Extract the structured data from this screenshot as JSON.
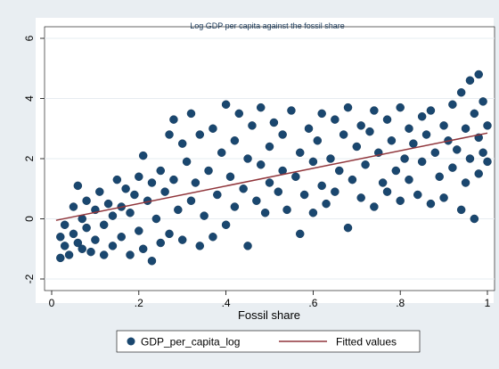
{
  "chart_data": {
    "type": "scatter",
    "title": "Log GDP per capita against the fossil share",
    "xlabel": "Fossil share",
    "ylabel": "",
    "xlim": [
      0,
      1
    ],
    "ylim": [
      -2,
      6
    ],
    "x_ticks": [
      0,
      0.2,
      0.4,
      0.6,
      0.8,
      1
    ],
    "x_tick_labels": [
      "0",
      ".2",
      ".4",
      ".6",
      ".8",
      "1"
    ],
    "y_ticks": [
      -2,
      0,
      2,
      4,
      6
    ],
    "y_tick_labels": [
      "-2",
      "0",
      "2",
      "4",
      "6"
    ],
    "grid": "horizontal",
    "legend_position": "bottom",
    "series": [
      {
        "name": "GDP_per_capita_log",
        "kind": "scatter",
        "color": "#1a476f",
        "points": [
          [
            0.02,
            -0.6
          ],
          [
            0.02,
            -1.3
          ],
          [
            0.03,
            -0.9
          ],
          [
            0.03,
            -0.2
          ],
          [
            0.04,
            -1.2
          ],
          [
            0.05,
            -0.5
          ],
          [
            0.05,
            0.4
          ],
          [
            0.06,
            -0.8
          ],
          [
            0.06,
            1.1
          ],
          [
            0.07,
            0.0
          ],
          [
            0.07,
            -1.0
          ],
          [
            0.08,
            0.6
          ],
          [
            0.08,
            -0.3
          ],
          [
            0.09,
            -1.1
          ],
          [
            0.1,
            0.3
          ],
          [
            0.1,
            -0.7
          ],
          [
            0.11,
            0.9
          ],
          [
            0.12,
            -0.2
          ],
          [
            0.12,
            -1.2
          ],
          [
            0.13,
            0.5
          ],
          [
            0.14,
            0.1
          ],
          [
            0.14,
            -0.9
          ],
          [
            0.15,
            1.3
          ],
          [
            0.16,
            0.4
          ],
          [
            0.16,
            -0.6
          ],
          [
            0.17,
            1.0
          ],
          [
            0.18,
            -1.2
          ],
          [
            0.18,
            0.2
          ],
          [
            0.19,
            0.8
          ],
          [
            0.2,
            -0.4
          ],
          [
            0.2,
            1.4
          ],
          [
            0.21,
            2.1
          ],
          [
            0.21,
            -1.0
          ],
          [
            0.22,
            0.6
          ],
          [
            0.23,
            -1.4
          ],
          [
            0.23,
            1.2
          ],
          [
            0.24,
            0.0
          ],
          [
            0.25,
            1.6
          ],
          [
            0.25,
            -0.8
          ],
          [
            0.26,
            0.9
          ],
          [
            0.27,
            2.8
          ],
          [
            0.27,
            -0.5
          ],
          [
            0.28,
            3.3
          ],
          [
            0.28,
            1.3
          ],
          [
            0.29,
            0.3
          ],
          [
            0.3,
            2.5
          ],
          [
            0.3,
            -0.7
          ],
          [
            0.31,
            1.9
          ],
          [
            0.32,
            3.5
          ],
          [
            0.32,
            0.6
          ],
          [
            0.33,
            1.2
          ],
          [
            0.34,
            2.8
          ],
          [
            0.34,
            -0.9
          ],
          [
            0.35,
            0.1
          ],
          [
            0.36,
            1.6
          ],
          [
            0.37,
            3.0
          ],
          [
            0.37,
            -0.6
          ],
          [
            0.38,
            0.8
          ],
          [
            0.39,
            2.2
          ],
          [
            0.4,
            3.8
          ],
          [
            0.4,
            -0.2
          ],
          [
            0.41,
            1.4
          ],
          [
            0.42,
            2.6
          ],
          [
            0.42,
            0.4
          ],
          [
            0.43,
            3.5
          ],
          [
            0.44,
            1.0
          ],
          [
            0.45,
            2.0
          ],
          [
            0.45,
            -0.9
          ],
          [
            0.46,
            3.1
          ],
          [
            0.47,
            0.6
          ],
          [
            0.48,
            1.8
          ],
          [
            0.48,
            3.7
          ],
          [
            0.49,
            0.2
          ],
          [
            0.5,
            2.4
          ],
          [
            0.5,
            1.2
          ],
          [
            0.51,
            3.2
          ],
          [
            0.52,
            0.9
          ],
          [
            0.53,
            1.6
          ],
          [
            0.53,
            2.8
          ],
          [
            0.54,
            0.3
          ],
          [
            0.55,
            3.6
          ],
          [
            0.56,
            1.4
          ],
          [
            0.57,
            2.2
          ],
          [
            0.57,
            -0.5
          ],
          [
            0.58,
            0.8
          ],
          [
            0.59,
            3.0
          ],
          [
            0.6,
            1.9
          ],
          [
            0.6,
            0.2
          ],
          [
            0.61,
            2.6
          ],
          [
            0.62,
            3.5
          ],
          [
            0.62,
            1.1
          ],
          [
            0.63,
            0.5
          ],
          [
            0.64,
            2.0
          ],
          [
            0.65,
            3.3
          ],
          [
            0.65,
            0.9
          ],
          [
            0.66,
            1.6
          ],
          [
            0.67,
            2.8
          ],
          [
            0.68,
            -0.3
          ],
          [
            0.68,
            3.7
          ],
          [
            0.69,
            1.3
          ],
          [
            0.7,
            2.4
          ],
          [
            0.71,
            0.7
          ],
          [
            0.71,
            3.1
          ],
          [
            0.72,
            1.8
          ],
          [
            0.73,
            2.9
          ],
          [
            0.74,
            0.4
          ],
          [
            0.74,
            3.6
          ],
          [
            0.75,
            2.2
          ],
          [
            0.76,
            1.2
          ],
          [
            0.77,
            3.3
          ],
          [
            0.77,
            0.9
          ],
          [
            0.78,
            2.6
          ],
          [
            0.79,
            1.6
          ],
          [
            0.8,
            3.7
          ],
          [
            0.8,
            0.6
          ],
          [
            0.81,
            2.0
          ],
          [
            0.82,
            3.0
          ],
          [
            0.82,
            1.3
          ],
          [
            0.83,
            2.5
          ],
          [
            0.84,
            0.8
          ],
          [
            0.85,
            3.4
          ],
          [
            0.85,
            1.9
          ],
          [
            0.86,
            2.8
          ],
          [
            0.87,
            0.5
          ],
          [
            0.87,
            3.6
          ],
          [
            0.88,
            2.2
          ],
          [
            0.89,
            1.4
          ],
          [
            0.9,
            3.1
          ],
          [
            0.9,
            0.7
          ],
          [
            0.91,
            2.6
          ],
          [
            0.92,
            3.8
          ],
          [
            0.92,
            1.7
          ],
          [
            0.93,
            2.3
          ],
          [
            0.94,
            0.3
          ],
          [
            0.94,
            4.2
          ],
          [
            0.95,
            3.0
          ],
          [
            0.95,
            1.2
          ],
          [
            0.96,
            4.6
          ],
          [
            0.96,
            2.0
          ],
          [
            0.97,
            3.5
          ],
          [
            0.97,
            0.0
          ],
          [
            0.98,
            4.8
          ],
          [
            0.98,
            2.7
          ],
          [
            0.98,
            1.5
          ],
          [
            0.99,
            3.9
          ],
          [
            0.99,
            2.2
          ],
          [
            1.0,
            1.9
          ],
          [
            1.0,
            3.1
          ]
        ]
      },
      {
        "name": "Fitted values",
        "kind": "line",
        "color": "#90353b",
        "x": [
          0.01,
          1.0
        ],
        "y": [
          -0.05,
          2.85
        ]
      }
    ]
  }
}
